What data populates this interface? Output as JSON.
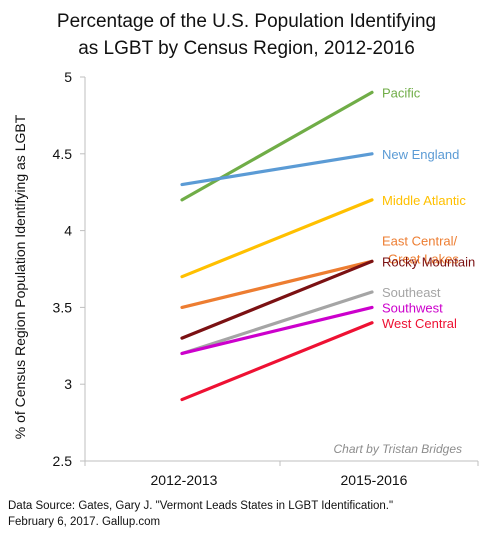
{
  "chart_data": {
    "type": "line",
    "title_lines": [
      "Percentage of the U.S. Population Identifying",
      "as LGBT by Census Region, 2012-2016"
    ],
    "categories": [
      "2012-2013",
      "2015-2016"
    ],
    "ylabel": "% of Census Region Population Identifying as LGBT",
    "ylim": [
      2.5,
      5
    ],
    "yticks": [
      "2.5",
      "3",
      "3.5",
      "4",
      "4.5",
      "5"
    ],
    "grid": false,
    "legend": "direct labels at line ends",
    "annotation": "Chart by Tristan Bridges",
    "series": [
      {
        "name": "Pacific",
        "label_lines": [
          "Pacific"
        ],
        "values": [
          4.2,
          4.9
        ],
        "color": "#70ad47"
      },
      {
        "name": "New England",
        "label_lines": [
          "New England"
        ],
        "values": [
          4.3,
          4.5
        ],
        "color": "#5b9bd5"
      },
      {
        "name": "Middle Atlantic",
        "label_lines": [
          "Middle Atlantic"
        ],
        "values": [
          3.7,
          4.2
        ],
        "color": "#ffc000"
      },
      {
        "name": "East Central/ Great Lakes",
        "label_lines": [
          "East Central/",
          "Great Lakes"
        ],
        "values": [
          3.5,
          3.8
        ],
        "color": "#ed7d31"
      },
      {
        "name": "Rocky Mountain",
        "label_lines": [
          "Rocky Mountain"
        ],
        "values": [
          3.3,
          3.8
        ],
        "color": "#7b1113"
      },
      {
        "name": "Southeast",
        "label_lines": [
          "Southeast"
        ],
        "values": [
          3.2,
          3.6
        ],
        "color": "#a5a5a5"
      },
      {
        "name": "Southwest",
        "label_lines": [
          "Southwest"
        ],
        "values": [
          3.2,
          3.5
        ],
        "color": "#cc00cc"
      },
      {
        "name": "West Central",
        "label_lines": [
          "West Central"
        ],
        "values": [
          2.9,
          3.4
        ],
        "color": "#ee1133"
      }
    ]
  },
  "source_lines": [
    "Data Source: Gates, Gary J. \"Vermont Leads States in LGBT Identification.\"",
    "February 6, 2017. Gallup.com"
  ]
}
